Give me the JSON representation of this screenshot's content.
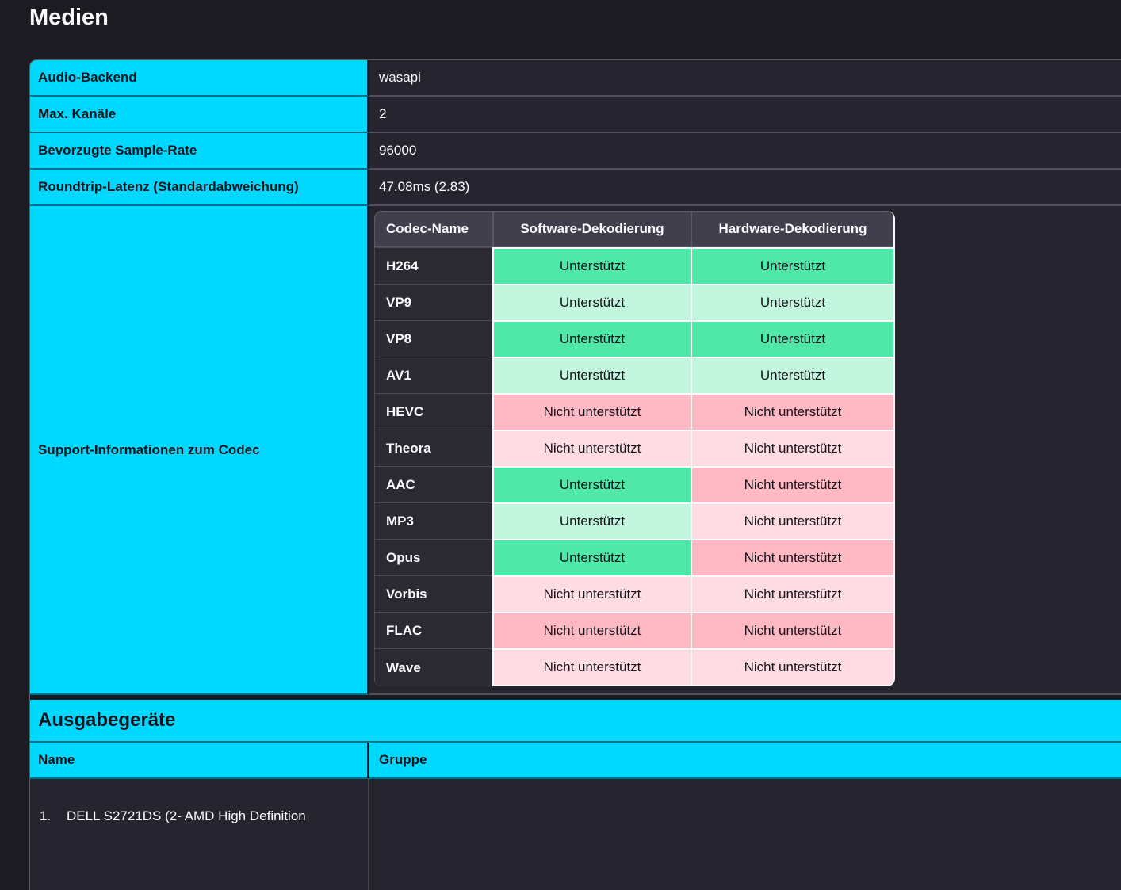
{
  "page": {
    "title": "Medien"
  },
  "colors": {
    "accent_cyan": "#00d8ff",
    "page_background": "#1c1b22",
    "cell_background": "#26252f",
    "supported_strong": "#4fe8a8",
    "supported_light": "#c2f6de",
    "unsupported_strong": "#ffb9c5",
    "unsupported_light": "#ffdbe3"
  },
  "media_table": {
    "rows": [
      {
        "label": "Audio-Backend",
        "value": "wasapi"
      },
      {
        "label": "Max. Kanäle",
        "value": "2"
      },
      {
        "label": "Bevorzugte Sample-Rate",
        "value": "96000"
      },
      {
        "label": "Roundtrip-Latenz (Standardabweichung)",
        "value": "47.08ms (2.83)"
      }
    ],
    "codec_section_label": "Support-Informationen zum Codec"
  },
  "codec_table": {
    "headers": {
      "name": "Codec-Name",
      "software": "Software-Dekodierung",
      "hardware": "Hardware-Dekodierung"
    },
    "rows": [
      {
        "name": "H264",
        "software": {
          "text": "Unterstützt",
          "status": "supported-strong"
        },
        "hardware": {
          "text": "Unterstützt",
          "status": "supported-strong"
        }
      },
      {
        "name": "VP9",
        "software": {
          "text": "Unterstützt",
          "status": "supported-light"
        },
        "hardware": {
          "text": "Unterstützt",
          "status": "supported-light"
        }
      },
      {
        "name": "VP8",
        "software": {
          "text": "Unterstützt",
          "status": "supported-strong"
        },
        "hardware": {
          "text": "Unterstützt",
          "status": "supported-strong"
        }
      },
      {
        "name": "AV1",
        "software": {
          "text": "Unterstützt",
          "status": "supported-light"
        },
        "hardware": {
          "text": "Unterstützt",
          "status": "supported-light"
        }
      },
      {
        "name": "HEVC",
        "software": {
          "text": "Nicht unterstützt",
          "status": "unsupported-strong"
        },
        "hardware": {
          "text": "Nicht unterstützt",
          "status": "unsupported-strong"
        }
      },
      {
        "name": "Theora",
        "software": {
          "text": "Nicht unterstützt",
          "status": "unsupported-light"
        },
        "hardware": {
          "text": "Nicht unterstützt",
          "status": "unsupported-light"
        }
      },
      {
        "name": "AAC",
        "software": {
          "text": "Unterstützt",
          "status": "supported-strong"
        },
        "hardware": {
          "text": "Nicht unterstützt",
          "status": "unsupported-strong"
        }
      },
      {
        "name": "MP3",
        "software": {
          "text": "Unterstützt",
          "status": "supported-light"
        },
        "hardware": {
          "text": "Nicht unterstützt",
          "status": "unsupported-light"
        }
      },
      {
        "name": "Opus",
        "software": {
          "text": "Unterstützt",
          "status": "supported-strong"
        },
        "hardware": {
          "text": "Nicht unterstützt",
          "status": "unsupported-strong"
        }
      },
      {
        "name": "Vorbis",
        "software": {
          "text": "Nicht unterstützt",
          "status": "unsupported-light"
        },
        "hardware": {
          "text": "Nicht unterstützt",
          "status": "unsupported-light"
        }
      },
      {
        "name": "FLAC",
        "software": {
          "text": "Nicht unterstützt",
          "status": "unsupported-strong"
        },
        "hardware": {
          "text": "Nicht unterstützt",
          "status": "unsupported-strong"
        }
      },
      {
        "name": "Wave",
        "software": {
          "text": "Nicht unterstützt",
          "status": "unsupported-light"
        },
        "hardware": {
          "text": "Nicht unterstützt",
          "status": "unsupported-light"
        }
      }
    ]
  },
  "output_devices": {
    "section_title": "Ausgabegeräte",
    "columns": {
      "name": "Name",
      "group": "Gruppe"
    },
    "devices": [
      {
        "index": "1.",
        "name": "DELL S2721DS (2- AMD High Definition",
        "group": ""
      }
    ]
  }
}
